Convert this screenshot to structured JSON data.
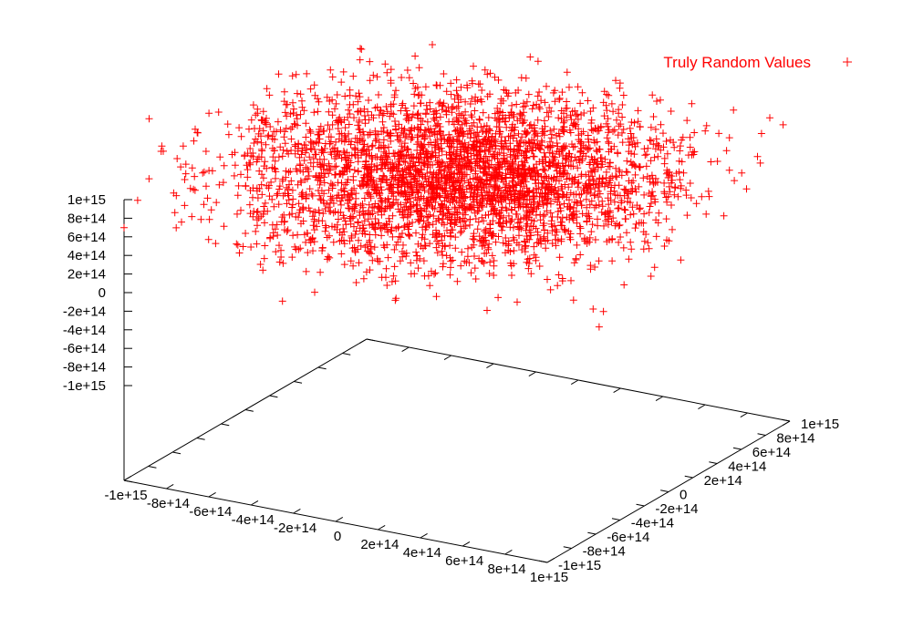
{
  "chart_data": {
    "type": "scatter",
    "title": "",
    "xlabel": "",
    "ylabel": "",
    "zlabel": "",
    "xlim": [
      -1000000000000000.0,
      1000000000000000.0
    ],
    "ylim": [
      -1000000000000000.0,
      1000000000000000.0
    ],
    "zlim": [
      -1000000000000000.0,
      1000000000000000.0
    ],
    "grid": false,
    "legend_position": "top-right",
    "marker": "+",
    "colors": {
      "series": "#ff0000",
      "axes": "#000000",
      "background": "#ffffff"
    },
    "x_ticks": [
      {
        "value": -1000000000000000.0,
        "label": "-1e+15"
      },
      {
        "value": -800000000000000.0,
        "label": "-8e+14"
      },
      {
        "value": -600000000000000.0,
        "label": "-6e+14"
      },
      {
        "value": -400000000000000.0,
        "label": "-4e+14"
      },
      {
        "value": -200000000000000.0,
        "label": "-2e+14"
      },
      {
        "value": 0,
        "label": "0"
      },
      {
        "value": 200000000000000.0,
        "label": "2e+14"
      },
      {
        "value": 400000000000000.0,
        "label": "4e+14"
      },
      {
        "value": 600000000000000.0,
        "label": "6e+14"
      },
      {
        "value": 800000000000000.0,
        "label": "8e+14"
      },
      {
        "value": 1000000000000000.0,
        "label": "1e+15"
      }
    ],
    "y_ticks": [
      {
        "value": -1000000000000000.0,
        "label": "-1e+15"
      },
      {
        "value": -800000000000000.0,
        "label": "-8e+14"
      },
      {
        "value": -600000000000000.0,
        "label": "-6e+14"
      },
      {
        "value": -400000000000000.0,
        "label": "-4e+14"
      },
      {
        "value": -200000000000000.0,
        "label": "-2e+14"
      },
      {
        "value": 0,
        "label": "0"
      },
      {
        "value": 200000000000000.0,
        "label": "2e+14"
      },
      {
        "value": 400000000000000.0,
        "label": "4e+14"
      },
      {
        "value": 600000000000000.0,
        "label": "6e+14"
      },
      {
        "value": 800000000000000.0,
        "label": "8e+14"
      },
      {
        "value": 1000000000000000.0,
        "label": "1e+15"
      }
    ],
    "z_ticks": [
      {
        "value": 1000000000000000.0,
        "label": "1e+15"
      },
      {
        "value": 800000000000000.0,
        "label": "8e+14"
      },
      {
        "value": 600000000000000.0,
        "label": "6e+14"
      },
      {
        "value": 400000000000000.0,
        "label": "4e+14"
      },
      {
        "value": 200000000000000.0,
        "label": "2e+14"
      },
      {
        "value": 0,
        "label": "0"
      },
      {
        "value": -200000000000000.0,
        "label": "-2e+14"
      },
      {
        "value": -400000000000000.0,
        "label": "-4e+14"
      },
      {
        "value": -600000000000000.0,
        "label": "-6e+14"
      },
      {
        "value": -800000000000000.0,
        "label": "-8e+14"
      },
      {
        "value": -1000000000000000.0,
        "label": "-1e+15"
      }
    ],
    "series": [
      {
        "name": "Truly Random Values",
        "color": "#ff0000",
        "marker": "+",
        "point_count": 3500,
        "distribution": {
          "x_mean": 0,
          "y_mean": 0,
          "z_mean": 0,
          "x_std": 450000000000000.0,
          "y_std": 450000000000000.0,
          "z_std": 250000000000000.0,
          "z_range": [
            -1000000000000000.0,
            1000000000000000.0
          ]
        }
      }
    ]
  },
  "legend": {
    "label": "Truly Random Values",
    "marker": "+"
  }
}
